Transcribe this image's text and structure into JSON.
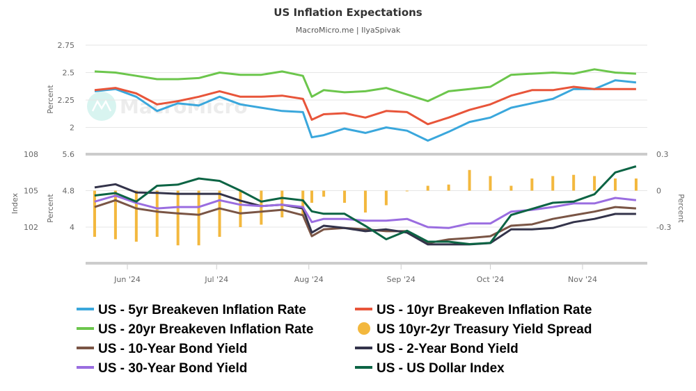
{
  "chart_data": {
    "type": "line",
    "title": "US Inflation Expectations",
    "subtitle": "MacroMicro.me | IlyaSpivak",
    "watermark": "MacroMicro",
    "x": [
      "2024-05-21",
      "2024-05-28",
      "2024-06-04",
      "2024-06-11",
      "2024-06-18",
      "2024-06-25",
      "2024-07-02",
      "2024-07-09",
      "2024-07-16",
      "2024-07-23",
      "2024-07-30",
      "2024-08-02",
      "2024-08-06",
      "2024-08-13",
      "2024-08-20",
      "2024-08-27",
      "2024-09-03",
      "2024-09-10",
      "2024-09-17",
      "2024-09-24",
      "2024-10-01",
      "2024-10-08",
      "2024-10-15",
      "2024-10-22",
      "2024-10-29",
      "2024-11-05",
      "2024-11-12",
      "2024-11-19"
    ],
    "x_ticks": [
      "Jun '24",
      "Jul '24",
      "Aug '24",
      "Sep '24",
      "Oct '24",
      "Nov '24"
    ],
    "x_tick_dates": [
      "2024-06-01",
      "2024-07-01",
      "2024-08-01",
      "2024-09-01",
      "2024-10-01",
      "2024-11-01"
    ],
    "panes": [
      {
        "ylabel": "Percent",
        "yticks": [
          "2.75",
          "2.5",
          "2.25",
          "2"
        ],
        "ylim": [
          1.8,
          2.75
        ]
      },
      {
        "ylabel_left": "Percent",
        "yticks_left": [
          "5.6",
          "4.8",
          "4"
        ],
        "ylim_left": [
          3.23,
          5.6
        ],
        "ylabel_index": "Index",
        "yticks_index": [
          "108",
          "105",
          "102"
        ],
        "ylim_index": [
          98.3,
          108
        ],
        "ylabel_right": "Percent",
        "yticks_right": [
          "0.3",
          "0",
          "-0.3"
        ],
        "ylim_right": [
          -0.59,
          0.3
        ]
      }
    ],
    "series": [
      {
        "name": "US - 5yr Breakeven Inflation Rate",
        "pane": 0,
        "axis": "left",
        "kind": "line",
        "color": "#3aa7dc",
        "values": [
          2.33,
          2.35,
          2.28,
          2.15,
          2.22,
          2.2,
          2.28,
          2.21,
          2.18,
          2.15,
          2.14,
          1.91,
          1.93,
          1.99,
          1.95,
          2.0,
          1.97,
          1.88,
          1.96,
          2.05,
          2.09,
          2.18,
          2.22,
          2.26,
          2.35,
          2.35,
          2.43,
          2.41
        ]
      },
      {
        "name": "US - 10yr Breakeven Inflation Rate",
        "pane": 0,
        "axis": "left",
        "kind": "line",
        "color": "#e8553a",
        "values": [
          2.34,
          2.36,
          2.31,
          2.21,
          2.24,
          2.28,
          2.33,
          2.28,
          2.28,
          2.29,
          2.26,
          2.07,
          2.12,
          2.13,
          2.09,
          2.15,
          2.14,
          2.03,
          2.09,
          2.16,
          2.21,
          2.29,
          2.34,
          2.34,
          2.37,
          2.35,
          2.35,
          2.35
        ]
      },
      {
        "name": "US - 20yr Breakeven Inflation Rate",
        "pane": 0,
        "axis": "left",
        "kind": "line",
        "color": "#6cc64c",
        "values": [
          2.51,
          2.5,
          2.47,
          2.44,
          2.44,
          2.45,
          2.5,
          2.48,
          2.48,
          2.51,
          2.47,
          2.28,
          2.34,
          2.32,
          2.33,
          2.36,
          2.3,
          2.24,
          2.33,
          2.35,
          2.37,
          2.48,
          2.49,
          2.5,
          2.49,
          2.53,
          2.5,
          2.49
        ]
      },
      {
        "name": "US 10yr-2yr Treasury Yield Spread",
        "pane": 1,
        "axis": "right",
        "kind": "bar",
        "color": "#f3b83e",
        "values": [
          -0.38,
          -0.4,
          -0.42,
          -0.38,
          -0.45,
          -0.45,
          -0.38,
          -0.3,
          -0.28,
          -0.22,
          -0.2,
          -0.1,
          -0.05,
          -0.1,
          -0.18,
          -0.12,
          0.0,
          0.04,
          0.05,
          0.17,
          0.12,
          0.04,
          0.1,
          0.12,
          0.13,
          0.12,
          0.1,
          0.1
        ]
      },
      {
        "name": "US - 10-Year Bond Yield",
        "pane": 1,
        "axis": "left",
        "kind": "line",
        "color": "#7a5545",
        "values": [
          4.44,
          4.59,
          4.41,
          4.34,
          4.3,
          4.27,
          4.41,
          4.3,
          4.34,
          4.38,
          4.26,
          3.8,
          3.95,
          3.98,
          3.95,
          3.91,
          3.91,
          3.65,
          3.73,
          3.76,
          3.8,
          4.03,
          4.06,
          4.18,
          4.26,
          4.34,
          4.44,
          4.41
        ]
      },
      {
        "name": "US - 2-Year Bond Yield",
        "pane": 1,
        "axis": "left",
        "kind": "line",
        "color": "#33334a",
        "values": [
          4.87,
          4.94,
          4.76,
          4.75,
          4.73,
          4.73,
          4.73,
          4.58,
          4.46,
          4.49,
          4.41,
          3.88,
          4.03,
          3.98,
          3.91,
          3.95,
          3.88,
          3.62,
          3.62,
          3.62,
          3.65,
          3.95,
          3.95,
          3.98,
          4.11,
          4.18,
          4.29,
          4.29
        ]
      },
      {
        "name": "US - 30-Year Bond Yield",
        "pane": 1,
        "axis": "left",
        "kind": "line",
        "color": "#9a6de0",
        "values": [
          4.56,
          4.69,
          4.53,
          4.41,
          4.44,
          4.44,
          4.59,
          4.49,
          4.46,
          4.49,
          4.44,
          4.11,
          4.18,
          4.18,
          4.14,
          4.14,
          4.18,
          4.0,
          3.98,
          4.08,
          4.08,
          4.34,
          4.38,
          4.44,
          4.52,
          4.52,
          4.64,
          4.59
        ]
      },
      {
        "name": "US - US Dollar Index",
        "pane": 1,
        "axis": "index",
        "kind": "line",
        "color": "#0c6444",
        "values": [
          104.6,
          104.8,
          104.1,
          105.4,
          105.5,
          106.0,
          105.8,
          105.0,
          104.1,
          104.4,
          104.2,
          103.3,
          103.1,
          103.1,
          102.1,
          101.0,
          101.7,
          100.8,
          100.8,
          100.6,
          100.7,
          103.0,
          103.5,
          104.0,
          104.1,
          104.7,
          106.5,
          107.0
        ]
      }
    ],
    "legend_position": "bottom",
    "grid": true
  }
}
